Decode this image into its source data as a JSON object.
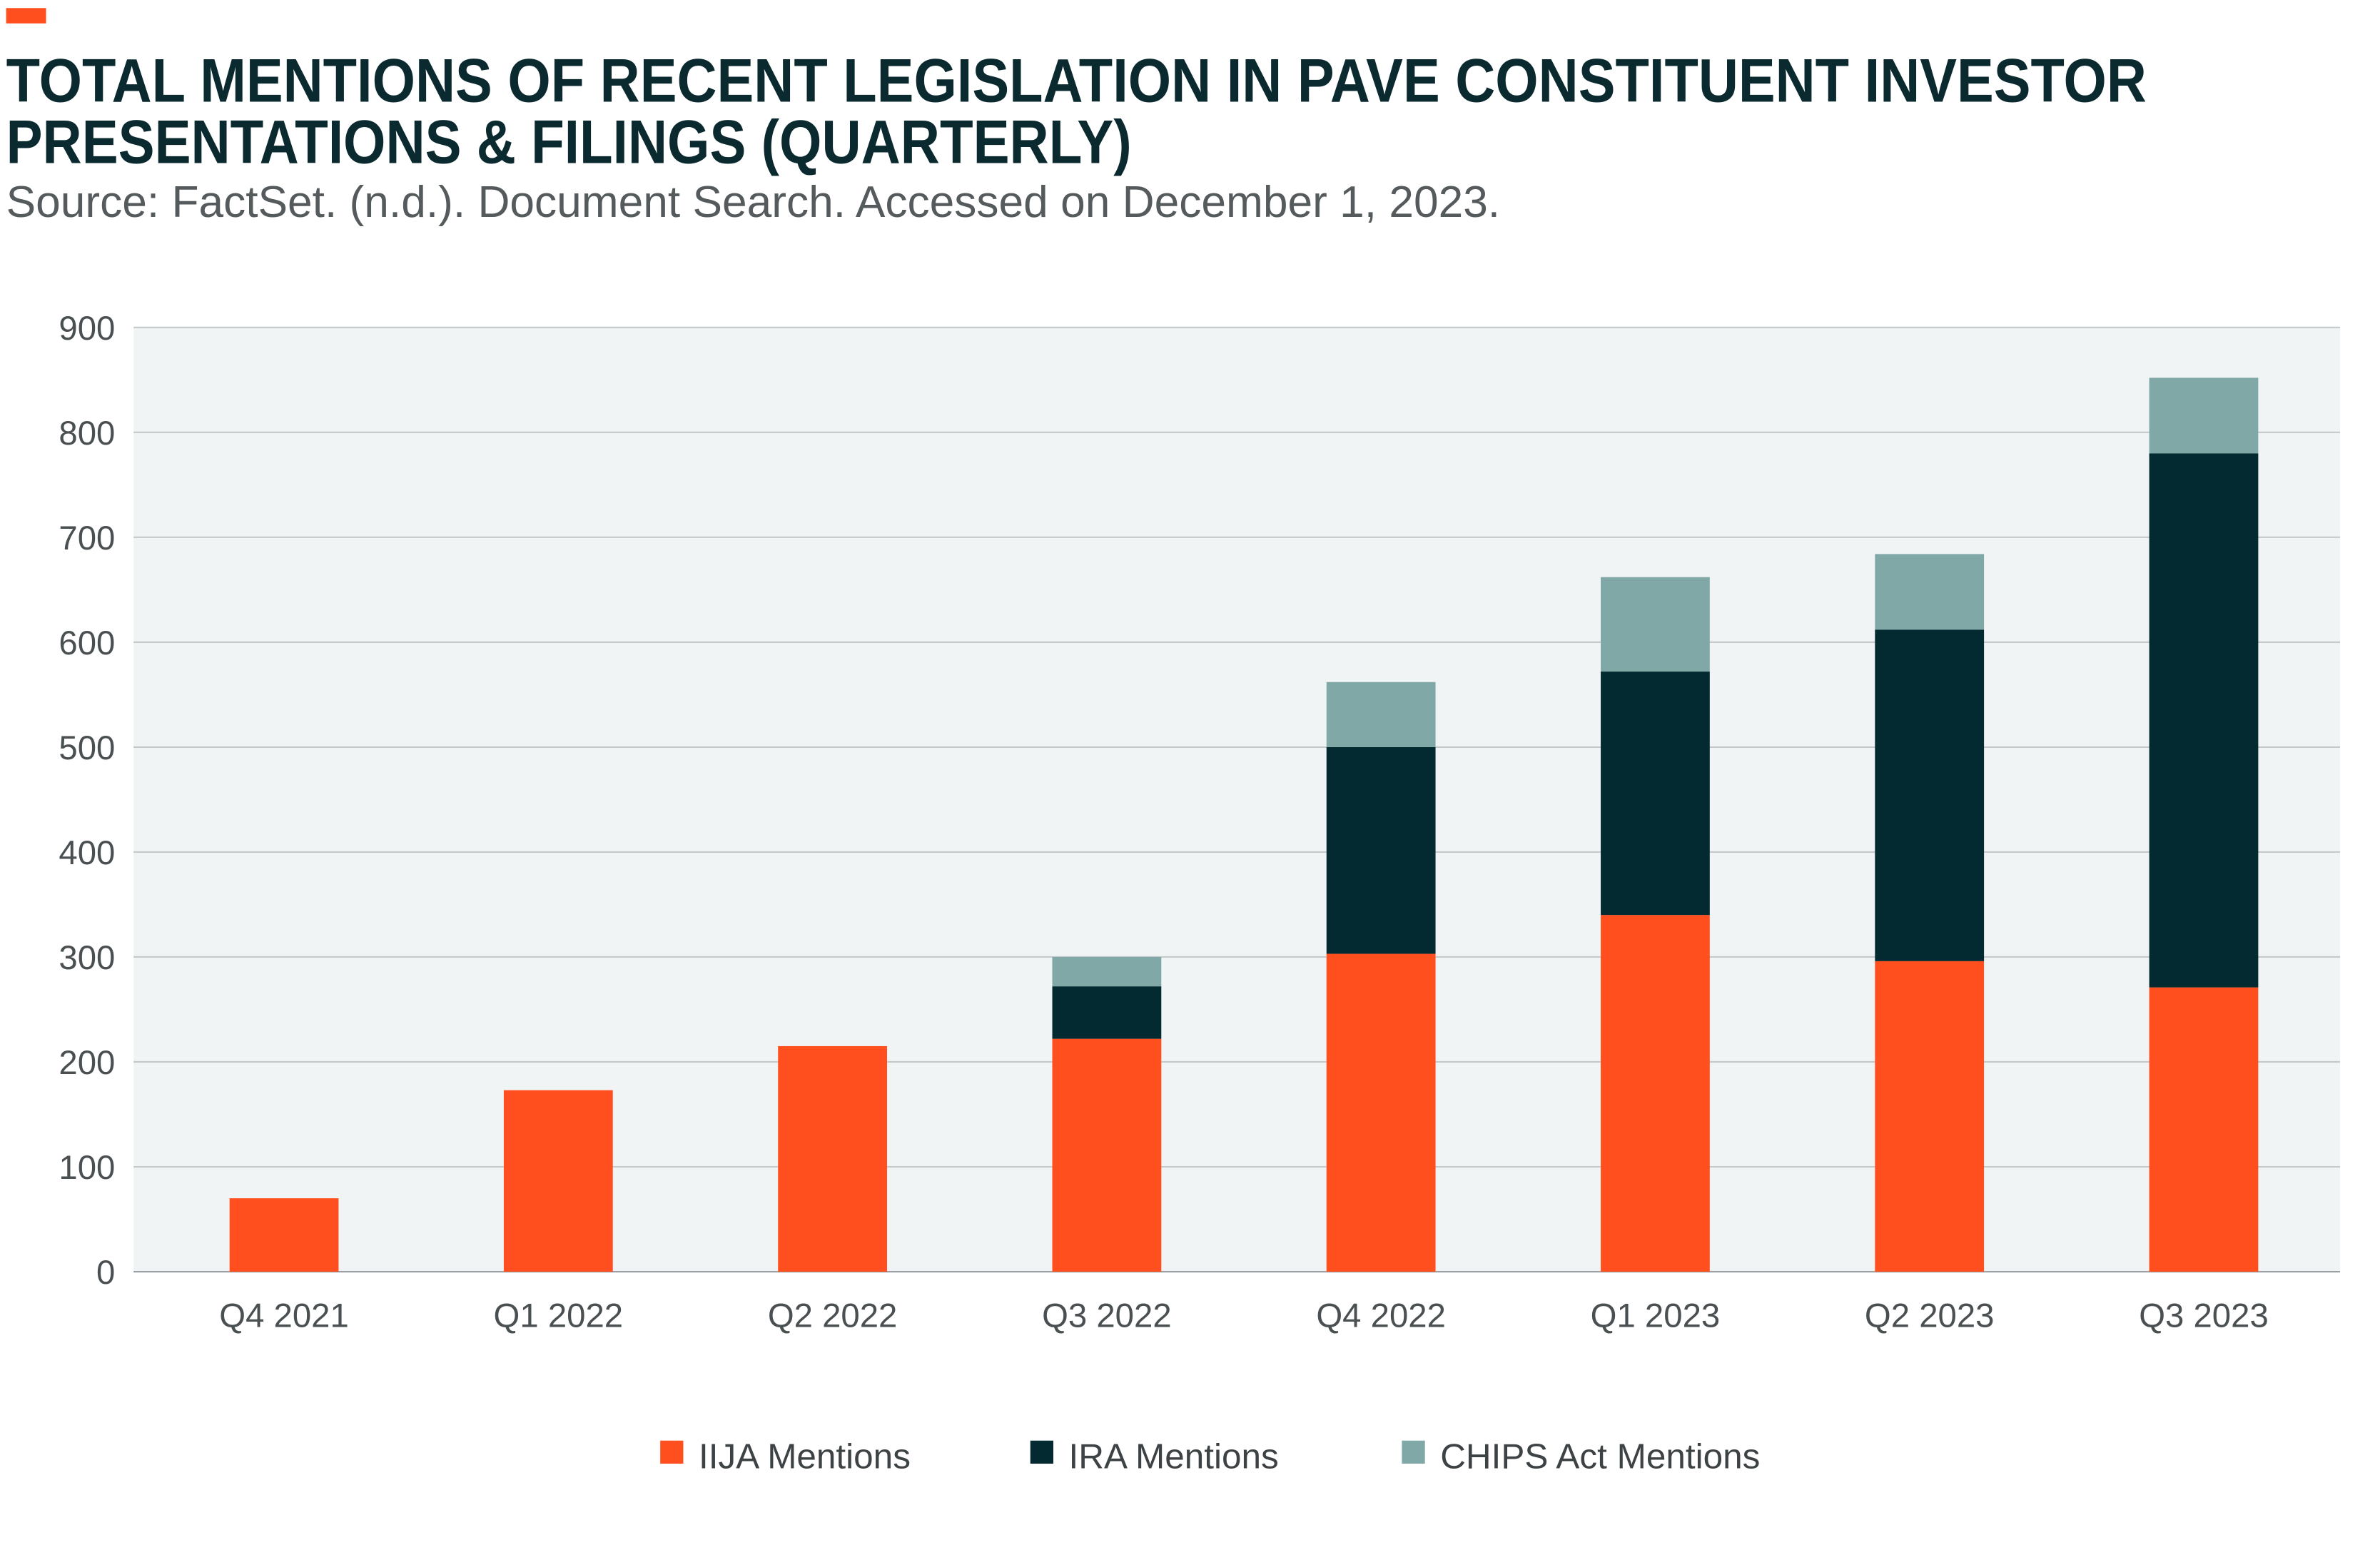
{
  "header": {
    "title_line1": "TOTAL MENTIONS OF RECENT LEGISLATION IN PAVE CONSTITUENT INVESTOR",
    "title_line2": "PRESENTATIONS & FILINGS (QUARTERLY)",
    "subtitle": "Source: FactSet. (n.d.). Document Search. Accessed on December 1, 2023.",
    "accent_color": "#FF4F1F"
  },
  "chart_data": {
    "type": "bar",
    "stacked": true,
    "title": "TOTAL MENTIONS OF RECENT LEGISLATION IN PAVE CONSTITUENT INVESTOR PRESENTATIONS & FILINGS (QUARTERLY)",
    "xlabel": "",
    "ylabel": "",
    "ylim": [
      0,
      900
    ],
    "yticks": [
      "0",
      "100",
      "200",
      "300",
      "400",
      "500",
      "600",
      "700",
      "800",
      "900"
    ],
    "grid": true,
    "legend_position": "bottom",
    "plot_background": "#F1F4F5",
    "categories": [
      "Q4 2021",
      "Q1 2022",
      "Q2 2022",
      "Q3 2022",
      "Q4 2022",
      "Q1 2023",
      "Q2 2023",
      "Q3 2023"
    ],
    "series": [
      {
        "name": "IIJA Mentions",
        "color": "#FF4F1F",
        "values": [
          70,
          173,
          215,
          222,
          303,
          340,
          296,
          271
        ]
      },
      {
        "name": "IRA Mentions",
        "color": "#022A30",
        "values": [
          0,
          0,
          0,
          50,
          197,
          232,
          316,
          509
        ]
      },
      {
        "name": "CHIPS Act Mentions",
        "color": "#80A8A6",
        "values": [
          0,
          0,
          0,
          28,
          62,
          90,
          72,
          72
        ]
      }
    ]
  }
}
